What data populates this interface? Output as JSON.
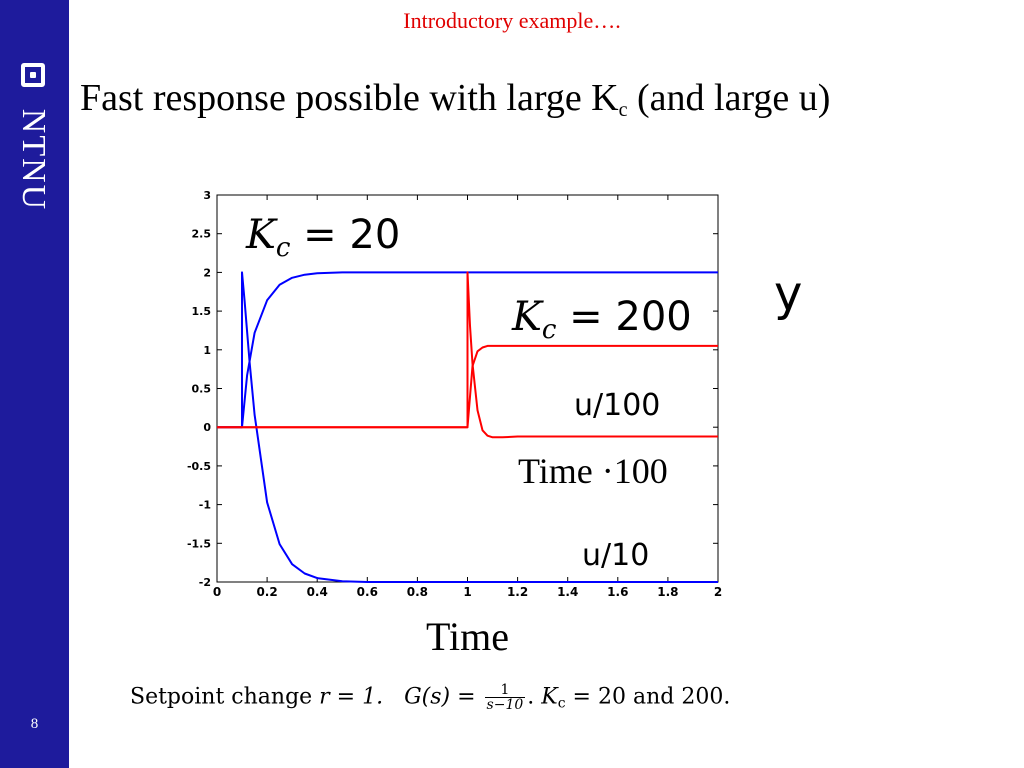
{
  "header": {
    "section_title": "Introductory example….",
    "title_main": "Fast response possible with large K",
    "title_sub": "c",
    "title_tail": " (and large u)"
  },
  "sidebar": {
    "logo_text": "NTNU",
    "page_number": "8"
  },
  "caption": {
    "part1": "Setpoint change ",
    "r_eq": "r = 1.",
    "g_label": "G(s) = ",
    "frac_num": "1",
    "frac_den": "s−10",
    "part2": ". ",
    "kc_text": "K",
    "kc_sub": "c",
    "part3": " = 20 and 200."
  },
  "colors": {
    "sidebar": "#1e1b9c",
    "section_title": "#e00000",
    "kc20_series": "#0000ff",
    "kc200_series": "#ff0000"
  },
  "chart_data": {
    "type": "line",
    "xlabel": "Time",
    "ylabel": "",
    "xlim": [
      0,
      2
    ],
    "ylim": [
      -2,
      3
    ],
    "xticks": [
      "0",
      "0.2",
      "0.4",
      "0.6",
      "0.8",
      "1",
      "1.2",
      "1.4",
      "1.6",
      "1.8",
      "2"
    ],
    "yticks": [
      "3",
      "2.5",
      "2",
      "1.5",
      "1",
      "0.5",
      "0",
      "-0.5",
      "-1",
      "-1.5",
      "-2"
    ],
    "grid": false,
    "annotations": {
      "kc20": "K_c = 20",
      "kc200": "K_c = 200",
      "y": "y",
      "u100": "u/100",
      "time100": "Time ·100",
      "u10": "u/10"
    },
    "series": [
      {
        "color": "#0000ff",
        "x": [
          0,
          0.1,
          0.12,
          0.15,
          0.2,
          0.25,
          0.3,
          0.35,
          0.4,
          0.5,
          0.6,
          0.8,
          1.0,
          1.5,
          2.0
        ],
        "y": [
          0,
          0,
          0.67,
          1.22,
          1.64,
          1.84,
          1.93,
          1.97,
          1.99,
          2.0,
          2.0,
          2.0,
          2.0,
          2.0,
          2.0
        ]
      },
      {
        "color": "#0000ff",
        "x": [
          0,
          0.1,
          0.1,
          0.11,
          0.13,
          0.15,
          0.2,
          0.25,
          0.3,
          0.35,
          0.4,
          0.5,
          0.6,
          0.8,
          1.0,
          1.5,
          2.0
        ],
        "y": [
          0,
          0,
          2.0,
          1.63,
          0.84,
          0.16,
          -0.97,
          -1.51,
          -1.77,
          -1.89,
          -1.95,
          -1.99,
          -2.0,
          -2.0,
          -2.0,
          -2.0,
          -2.0
        ]
      },
      {
        "color": "#ff0000",
        "x": [
          0,
          0.5,
          1.0,
          1.02,
          1.04,
          1.06,
          1.08,
          1.1,
          1.14,
          1.2,
          1.3,
          1.4,
          1.6,
          2.0
        ],
        "y": [
          0,
          0,
          0,
          0.79,
          0.98,
          1.03,
          1.05,
          1.05,
          1.05,
          1.05,
          1.05,
          1.05,
          1.05,
          1.05
        ]
      },
      {
        "color": "#ff0000",
        "x": [
          0,
          0.5,
          1.0,
          1.0,
          1.01,
          1.02,
          1.04,
          1.06,
          1.08,
          1.1,
          1.14,
          1.2,
          1.3,
          1.5,
          2.0
        ],
        "y": [
          0,
          0,
          0,
          2.0,
          1.31,
          0.82,
          0.22,
          -0.04,
          -0.11,
          -0.13,
          -0.13,
          -0.12,
          -0.12,
          -0.12,
          -0.12
        ]
      }
    ]
  }
}
